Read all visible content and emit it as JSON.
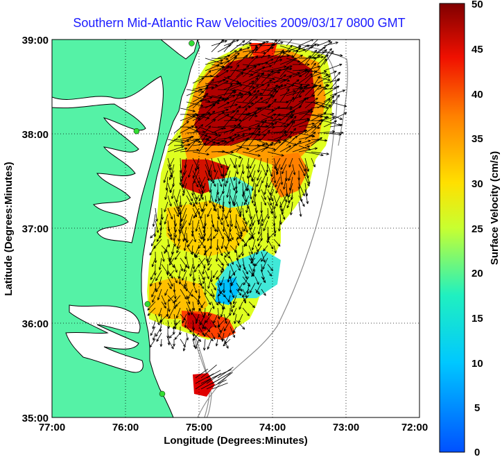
{
  "title": "Southern Mid-Atlantic Raw Velocities 2009/03/17 0800 GMT",
  "x_axis": {
    "label": "Longitude (Degrees:Minutes)",
    "ticks": [
      "77:00",
      "76:00",
      "75:00",
      "74:00",
      "73:00",
      "72:00"
    ]
  },
  "y_axis": {
    "label": "Latitude (Degrees:Minutes)",
    "ticks": [
      "39:00",
      "38:00",
      "37:00",
      "36:00",
      "35:00"
    ]
  },
  "colorbar": {
    "label": "Surface Velocity (cm/s)",
    "ticks": [
      "50",
      "45",
      "40",
      "35",
      "30",
      "25",
      "20",
      "15",
      "10",
      "5",
      "0"
    ],
    "range": [
      0,
      50
    ],
    "colormap": "jet"
  },
  "colors": {
    "land": "#55f2a6",
    "ocean": "#ffffff",
    "coastline": "#000000",
    "bathymetry": "#8c8c8c",
    "title": "#1a1aff",
    "station": "#33dd33"
  },
  "map": {
    "lon_range": [
      -77,
      -72
    ],
    "lat_range": [
      35,
      39
    ],
    "grid": "dotted",
    "stations": [
      {
        "lon": -75.1,
        "lat": 38.96
      },
      {
        "lon": -75.85,
        "lat": 38.03
      },
      {
        "lon": -75.7,
        "lat": 36.2
      },
      {
        "lon": -75.5,
        "lat": 35.25
      }
    ]
  }
}
